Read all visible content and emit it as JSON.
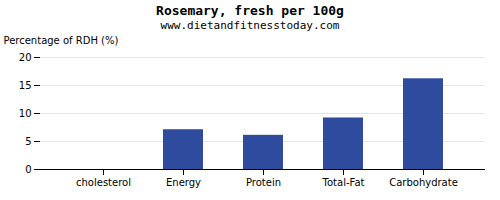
{
  "chart_data": {
    "type": "bar",
    "title": "Rosemary, fresh per 100g",
    "subtitle": "www.dietandfitnesstoday.com",
    "categories": [
      "cholesterol",
      "Energy",
      "Protein",
      "Total-Fat",
      "Carbohydrate"
    ],
    "values": [
      0,
      7.1,
      6.1,
      9.2,
      16.2
    ],
    "color": "#2e4b9e",
    "ylabel": "Percentage of RDH (%)",
    "ylim": [
      0,
      20
    ],
    "yticks": [
      0,
      5,
      10,
      15,
      20
    ],
    "grid": true
  }
}
